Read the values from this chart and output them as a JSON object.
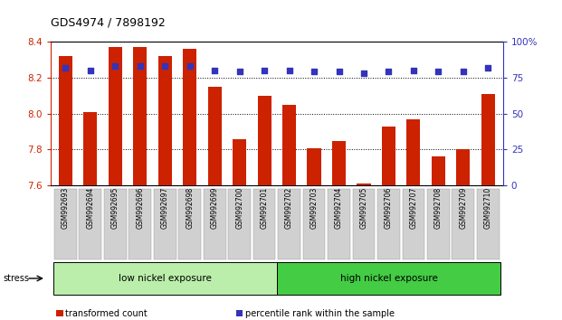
{
  "title": "GDS4974 / 7898192",
  "samples": [
    "GSM992693",
    "GSM992694",
    "GSM992695",
    "GSM992696",
    "GSM992697",
    "GSM992698",
    "GSM992699",
    "GSM992700",
    "GSM992701",
    "GSM992702",
    "GSM992703",
    "GSM992704",
    "GSM992705",
    "GSM992706",
    "GSM992707",
    "GSM992708",
    "GSM992709",
    "GSM992710"
  ],
  "bar_values": [
    8.32,
    8.01,
    8.37,
    8.37,
    8.32,
    8.36,
    8.15,
    7.86,
    8.1,
    8.05,
    7.81,
    7.85,
    7.61,
    7.93,
    7.97,
    7.76,
    7.8,
    8.11
  ],
  "percentile_values": [
    82,
    80,
    83,
    83,
    83,
    83,
    80,
    79,
    80,
    80,
    79,
    79,
    78,
    79,
    80,
    79,
    79,
    82
  ],
  "bar_color": "#cc2200",
  "dot_color": "#3333bb",
  "ylim_left": [
    7.6,
    8.4
  ],
  "ylim_right": [
    0,
    100
  ],
  "yticks_left": [
    7.6,
    7.8,
    8.0,
    8.2,
    8.4
  ],
  "yticks_right": [
    0,
    25,
    50,
    75,
    100
  ],
  "ytick_labels_right": [
    "0",
    "25",
    "50",
    "75",
    "100%"
  ],
  "grid_values": [
    7.8,
    8.0,
    8.2
  ],
  "groups": [
    {
      "label": "low nickel exposure",
      "start": 0,
      "end": 9,
      "color": "#bbeeaa"
    },
    {
      "label": "high nickel exposure",
      "start": 9,
      "end": 18,
      "color": "#44cc44"
    }
  ],
  "group_row_label": "stress",
  "legend_items": [
    {
      "color": "#cc2200",
      "label": "transformed count"
    },
    {
      "color": "#3333bb",
      "label": "percentile rank within the sample"
    }
  ],
  "bar_width": 0.55,
  "xlabel_color": "#cc2200",
  "ylabel_right_color": "#3333bb",
  "tick_label_bg": "#cccccc",
  "background_color": "#ffffff"
}
